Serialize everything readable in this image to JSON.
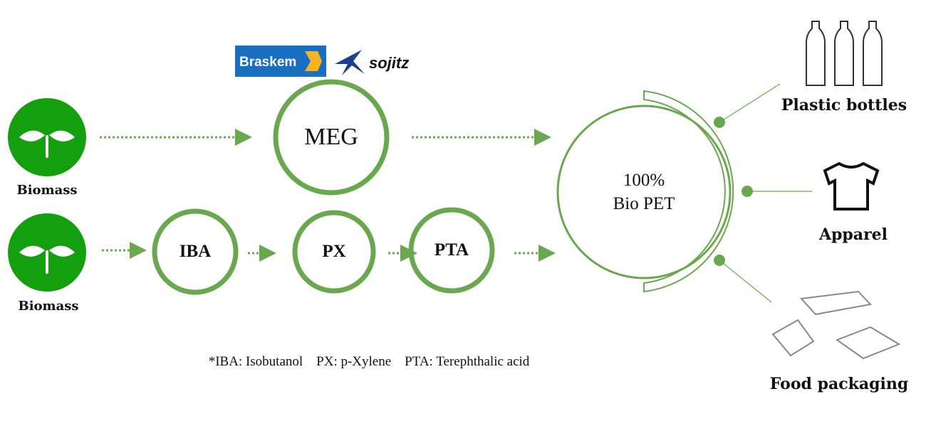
{
  "colors": {
    "biomass": "#14a00e",
    "ring": "#6aa84f",
    "arrow": "#6aa84f"
  },
  "sources": [
    {
      "label": "Biomass"
    },
    {
      "label": "Biomass"
    }
  ],
  "nodes": {
    "meg": "MEG",
    "iba": "IBA",
    "px": "PX",
    "pta": "PTA",
    "pet_line1": "100%",
    "pet_line2": "Bio PET"
  },
  "logos": {
    "braskem": "Braskem",
    "sojitz": "sojitz"
  },
  "applications": [
    {
      "label": "Plastic bottles",
      "icon": "bottles-icon"
    },
    {
      "label": "Apparel",
      "icon": "tshirt-icon"
    },
    {
      "label": "Food packaging",
      "icon": "food-container-icon"
    }
  ],
  "footnote": "*IBA: Isobutanol    PX: p-Xylene    PTA: Terephthalic acid"
}
